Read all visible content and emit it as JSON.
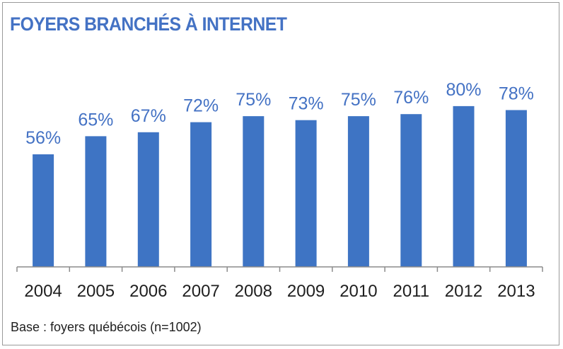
{
  "chart_data": {
    "type": "bar",
    "title": "FOYERS BRANCHÉS À INTERNET",
    "categories": [
      "2004",
      "2005",
      "2006",
      "2007",
      "2008",
      "2009",
      "2010",
      "2011",
      "2012",
      "2013"
    ],
    "values": [
      56,
      65,
      67,
      72,
      75,
      73,
      75,
      76,
      80,
      78
    ],
    "value_labels": [
      "56%",
      "65%",
      "67%",
      "72%",
      "75%",
      "73%",
      "75%",
      "76%",
      "80%",
      "78%"
    ],
    "unit": "%",
    "ylim": [
      0,
      100
    ],
    "grid": false,
    "legend": "none",
    "bar_color": "#3e74c4",
    "label_color": "#4472c4"
  },
  "footnote": "Base : foyers québécois (n=1002)"
}
